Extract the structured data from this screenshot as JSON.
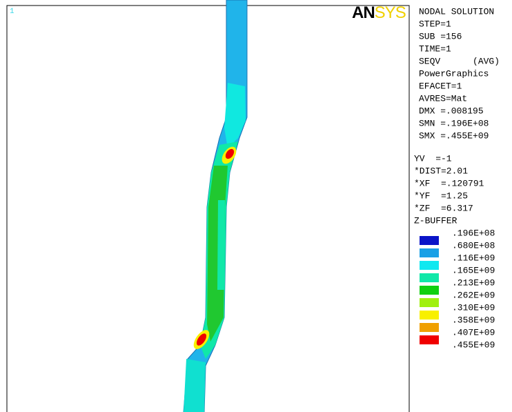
{
  "viewport": {
    "number": "1"
  },
  "logo": [
    "AN",
    "SYS"
  ],
  "info": [
    "NODAL SOLUTION",
    "STEP=1",
    "SUB =156",
    "TIME=1",
    "SEQV      (AVG)",
    "PowerGraphics",
    "EFACET=1",
    "AVRES=Mat",
    "DMX =.008195",
    "SMN =.196E+08",
    "SMX =.455E+09"
  ],
  "view": [
    "YV  =-1",
    "*DIST=2.01",
    "*XF  =.120791",
    "*YF  =1.25",
    "*ZF  =6.317",
    "Z-BUFFER"
  ],
  "legend": {
    "labels": [
      ".196E+08",
      ".680E+08",
      ".116E+09",
      ".165E+09",
      ".213E+09",
      ".262E+09",
      ".310E+09",
      ".358E+09",
      ".407E+09",
      ".455E+09"
    ],
    "colors": [
      "#0a14c8",
      "#1aa0e6",
      "#10e8f0",
      "#10e8a8",
      "#10d010",
      "#a0f010",
      "#f8f000",
      "#f0a000",
      "#f00000"
    ]
  }
}
